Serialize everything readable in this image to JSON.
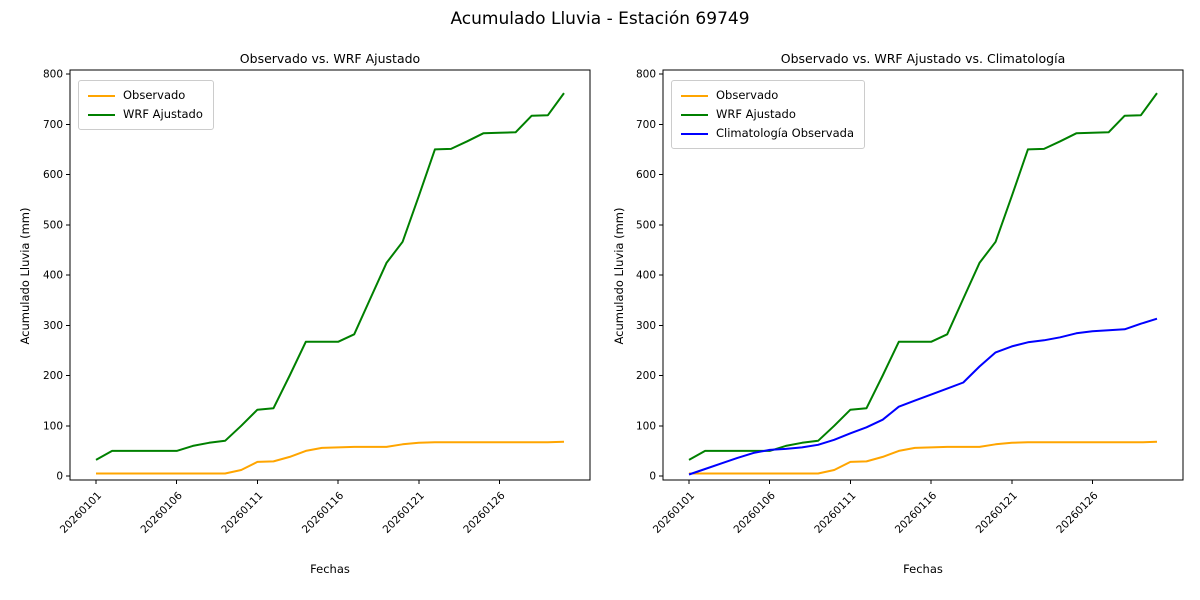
{
  "figure_title": "Acumulado Lluvia - Estación 69749",
  "colors": {
    "observado": "#FFA500",
    "wrf_ajustado": "#008000",
    "climatologia": "#0000FF",
    "spine": "#000000",
    "legend_border": "#CCCCCC",
    "background": "#FFFFFF"
  },
  "chart_data": [
    {
      "type": "line",
      "title": "Observado vs. WRF Ajustado",
      "xlabel": "Fechas",
      "ylabel": "Acumulado Lluvia (mm)",
      "ylim": [
        0,
        800
      ],
      "yticks": [
        0,
        100,
        200,
        300,
        400,
        500,
        600,
        700,
        800
      ],
      "grid": false,
      "legend_position": "upper left",
      "xtick_rotation": 45,
      "xtick_labels": [
        "20260101",
        "20260106",
        "20260111",
        "20260116",
        "20260121",
        "20260126"
      ],
      "x_dates": [
        "20260101",
        "20260102",
        "20260103",
        "20260104",
        "20260105",
        "20260106",
        "20260107",
        "20260108",
        "20260109",
        "20260110",
        "20260111",
        "20260112",
        "20260113",
        "20260114",
        "20260115",
        "20260116",
        "20260117",
        "20260118",
        "20260119",
        "20260120",
        "20260121",
        "20260122",
        "20260123",
        "20260124",
        "20260125",
        "20260126",
        "20260127",
        "20260128",
        "20260129",
        "20260130"
      ],
      "series": [
        {
          "name": "Observado",
          "color": "#FFA500",
          "values": [
            5,
            5,
            5,
            5,
            5,
            5,
            5,
            5,
            5,
            12,
            28,
            29,
            38,
            50,
            56,
            57,
            58,
            58,
            58,
            63,
            66,
            67,
            67,
            67,
            67,
            67,
            67,
            67,
            67,
            68
          ]
        },
        {
          "name": "WRF Ajustado",
          "color": "#008000",
          "values": [
            32,
            50,
            50,
            50,
            50,
            50,
            60,
            66,
            70,
            100,
            132,
            135,
            200,
            267,
            267,
            267,
            282,
            353,
            424,
            466,
            557,
            650,
            651,
            666,
            682,
            683,
            684,
            717,
            718,
            762
          ]
        }
      ]
    },
    {
      "type": "line",
      "title": "Observado vs. WRF Ajustado vs. Climatología",
      "xlabel": "Fechas",
      "ylabel": "Acumulado Lluvia (mm)",
      "ylim": [
        0,
        800
      ],
      "yticks": [
        0,
        100,
        200,
        300,
        400,
        500,
        600,
        700,
        800
      ],
      "grid": false,
      "legend_position": "upper left",
      "xtick_rotation": 45,
      "xtick_labels": [
        "20260101",
        "20260106",
        "20260111",
        "20260116",
        "20260121",
        "20260126"
      ],
      "x_dates": [
        "20260101",
        "20260102",
        "20260103",
        "20260104",
        "20260105",
        "20260106",
        "20260107",
        "20260108",
        "20260109",
        "20260110",
        "20260111",
        "20260112",
        "20260113",
        "20260114",
        "20260115",
        "20260116",
        "20260117",
        "20260118",
        "20260119",
        "20260120",
        "20260121",
        "20260122",
        "20260123",
        "20260124",
        "20260125",
        "20260126",
        "20260127",
        "20260128",
        "20260129",
        "20260130"
      ],
      "series": [
        {
          "name": "Observado",
          "color": "#FFA500",
          "values": [
            5,
            5,
            5,
            5,
            5,
            5,
            5,
            5,
            5,
            12,
            28,
            29,
            38,
            50,
            56,
            57,
            58,
            58,
            58,
            63,
            66,
            67,
            67,
            67,
            67,
            67,
            67,
            67,
            67,
            68
          ]
        },
        {
          "name": "WRF Ajustado",
          "color": "#008000",
          "values": [
            32,
            50,
            50,
            50,
            50,
            50,
            60,
            66,
            70,
            100,
            132,
            135,
            200,
            267,
            267,
            267,
            282,
            353,
            424,
            466,
            557,
            650,
            651,
            666,
            682,
            683,
            684,
            717,
            718,
            762
          ]
        },
        {
          "name": "Climatología Observada",
          "color": "#0000FF",
          "values": [
            3,
            14,
            25,
            36,
            46,
            52,
            54,
            57,
            62,
            72,
            85,
            97,
            112,
            138,
            150,
            162,
            174,
            186,
            218,
            246,
            258,
            266,
            270,
            276,
            284,
            288,
            290,
            292,
            303,
            313
          ]
        }
      ]
    }
  ]
}
